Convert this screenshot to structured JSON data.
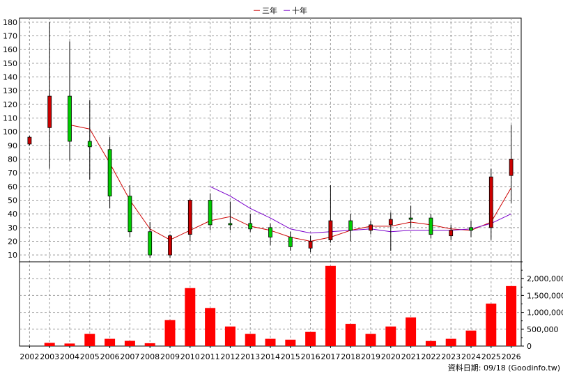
{
  "legend": {
    "items": [
      {
        "label": "三年",
        "color": "#cc0000"
      },
      {
        "label": "十年",
        "color": "#7a00cc"
      }
    ]
  },
  "footer": "資料日期: 09/18  (Goodinfo.tw)",
  "chart_data": [
    {
      "type": "candlestick",
      "x": [
        "2002",
        "2003",
        "2004",
        "2005",
        "2006",
        "2007",
        "2008",
        "2009",
        "2010",
        "2011",
        "2012",
        "2013",
        "2014",
        "2015",
        "2016",
        "2017",
        "2018",
        "2019",
        "2020",
        "2021",
        "2022",
        "2023",
        "2024",
        "2025",
        "2026"
      ],
      "ylim": [
        5,
        183
      ],
      "yticks": [
        10,
        20,
        30,
        40,
        50,
        60,
        70,
        80,
        90,
        100,
        110,
        120,
        130,
        140,
        150,
        160,
        170,
        180
      ],
      "grid": true,
      "candles": [
        {
          "open": 91,
          "high": 97,
          "low": 90,
          "close": 96,
          "color": "#cc0000"
        },
        {
          "open": 103,
          "high": 180,
          "low": 73,
          "close": 126,
          "color": "#cc0000"
        },
        {
          "open": 126,
          "high": 166,
          "low": 79,
          "close": 93,
          "color": "#00cc00"
        },
        {
          "open": 93,
          "high": 123,
          "low": 65,
          "close": 89,
          "color": "#00cc00"
        },
        {
          "open": 87,
          "high": 96,
          "low": 44,
          "close": 53,
          "color": "#00cc00"
        },
        {
          "open": 53,
          "high": 61,
          "low": 23,
          "close": 27,
          "color": "#00cc00"
        },
        {
          "open": 27,
          "high": 34,
          "low": 8,
          "close": 10,
          "color": "#00cc00"
        },
        {
          "open": 10,
          "high": 25,
          "low": 8,
          "close": 24,
          "color": "#cc0000"
        },
        {
          "open": 25,
          "high": 51,
          "low": 20,
          "close": 50,
          "color": "#cc0000"
        },
        {
          "open": 50,
          "high": 55,
          "low": 28,
          "close": 32,
          "color": "#00cc00"
        },
        {
          "open": 32,
          "high": 49,
          "low": 28,
          "close": 33,
          "color": "#00cc00"
        },
        {
          "open": 33,
          "high": 40,
          "low": 27,
          "close": 29,
          "color": "#00cc00"
        },
        {
          "open": 30,
          "high": 33,
          "low": 17,
          "close": 23,
          "color": "#00cc00"
        },
        {
          "open": 23,
          "high": 27,
          "low": 13,
          "close": 16,
          "color": "#00cc00"
        },
        {
          "open": 15,
          "high": 24,
          "low": 12,
          "close": 20,
          "color": "#cc0000"
        },
        {
          "open": 21,
          "high": 61,
          "low": 19,
          "close": 35,
          "color": "#cc0000"
        },
        {
          "open": 35,
          "high": 40,
          "low": 20,
          "close": 28,
          "color": "#00cc00"
        },
        {
          "open": 28,
          "high": 35,
          "low": 25,
          "close": 32,
          "color": "#cc0000"
        },
        {
          "open": 32,
          "high": 41,
          "low": 13,
          "close": 36,
          "color": "#cc0000"
        },
        {
          "open": 37,
          "high": 46,
          "low": 30,
          "close": 36,
          "color": "#00cc00"
        },
        {
          "open": 37,
          "high": 40,
          "low": 22,
          "close": 25,
          "color": "#00cc00"
        },
        {
          "open": 24,
          "high": 32,
          "low": 21,
          "close": 28,
          "color": "#cc0000"
        },
        {
          "open": 28,
          "high": 35,
          "low": 23,
          "close": 30,
          "color": "#00cc00"
        },
        {
          "open": 30,
          "high": 73,
          "low": 21,
          "close": 67,
          "color": "#cc0000"
        },
        {
          "open": 68,
          "high": 105,
          "low": 48,
          "close": 80,
          "color": "#cc0000"
        }
      ],
      "series": [
        {
          "name": "三年",
          "color": "#cc0000",
          "values": [
            null,
            null,
            105,
            102,
            77,
            50,
            29,
            21,
            28,
            35,
            38,
            31,
            28,
            23,
            20,
            23,
            28,
            31,
            31,
            34,
            32,
            29,
            28,
            34,
            59
          ]
        },
        {
          "name": "十年",
          "color": "#7a00cc",
          "values": [
            null,
            null,
            null,
            null,
            null,
            null,
            null,
            null,
            null,
            60,
            53,
            44,
            37,
            29,
            26,
            27,
            28,
            29,
            27,
            28,
            28,
            28,
            29,
            33,
            40
          ]
        }
      ]
    },
    {
      "type": "bar",
      "x": [
        "2002",
        "2003",
        "2004",
        "2005",
        "2006",
        "2007",
        "2008",
        "2009",
        "2010",
        "2011",
        "2012",
        "2013",
        "2014",
        "2015",
        "2016",
        "2017",
        "2018",
        "2019",
        "2020",
        "2021",
        "2022",
        "2023",
        "2024",
        "2025",
        "2026"
      ],
      "values": [
        0,
        95000,
        75000,
        360000,
        215000,
        155000,
        85000,
        770000,
        1720000,
        1130000,
        580000,
        360000,
        215000,
        190000,
        420000,
        2380000,
        660000,
        360000,
        580000,
        850000,
        150000,
        215000,
        460000,
        1260000,
        1780000
      ],
      "ylim": [
        0,
        2500000
      ],
      "yticks": [
        "0",
        "500,000",
        "1,000,000",
        "1,500,000",
        "2,000,000"
      ],
      "color": "#ff0000"
    }
  ]
}
